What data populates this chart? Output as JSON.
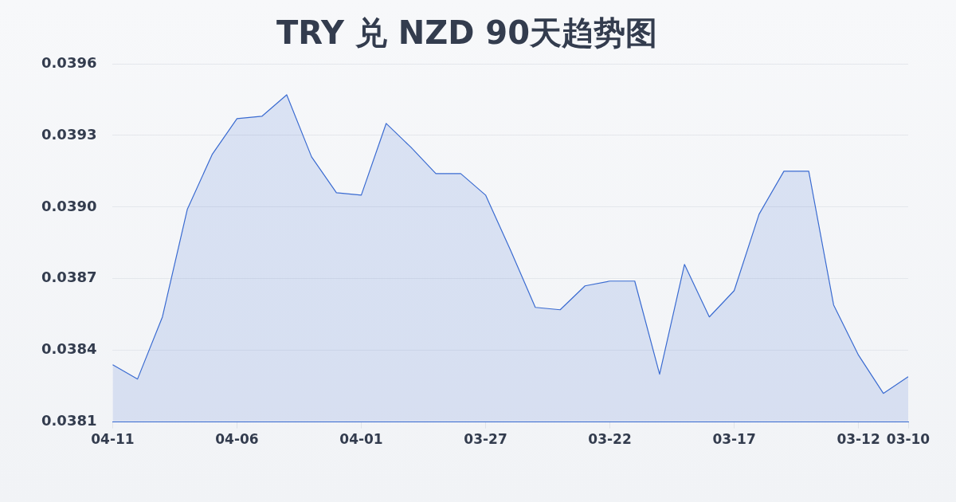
{
  "chart_data": {
    "type": "area",
    "title": "TRY 兑 NZD 90天趋势图",
    "categories": [
      "04-11",
      null,
      null,
      null,
      null,
      "04-06",
      null,
      null,
      null,
      null,
      "04-01",
      null,
      null,
      null,
      null,
      "03-27",
      null,
      null,
      null,
      null,
      "03-22",
      null,
      null,
      null,
      null,
      "03-17",
      null,
      null,
      null,
      null,
      "03-12",
      null,
      "03-10"
    ],
    "values": [
      0.03834,
      0.03828,
      0.03854,
      0.03899,
      0.03922,
      0.03937,
      0.03938,
      0.03947,
      0.03921,
      0.03906,
      0.03905,
      0.03935,
      0.03925,
      0.03914,
      0.03914,
      0.03905,
      0.03882,
      0.03858,
      0.03857,
      0.03867,
      0.03869,
      0.03869,
      0.0383,
      0.03876,
      0.03854,
      0.03865,
      0.03897,
      0.03915,
      0.03915,
      0.03859,
      0.03838,
      0.03822,
      0.03829
    ],
    "color": "#3a6bd1",
    "ylim": [
      0.0381,
      0.0396
    ],
    "yticks": [
      0.0381,
      0.0384,
      0.0387,
      {
        "value": 0.039,
        "label": "0.0390"
      },
      0.0393,
      0.0396
    ],
    "grid": "y",
    "marker": "none"
  }
}
